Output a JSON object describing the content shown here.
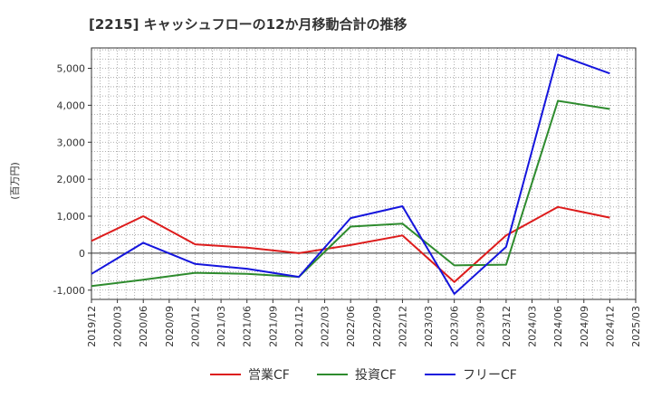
{
  "chart_data": {
    "type": "line",
    "title": "[2215]  キャッシュフローの12か月移動合計の推移",
    "ylabel": "(百万円)",
    "xlabel": "",
    "ylim": [
      -1250,
      5550
    ],
    "yticks": [
      -1000,
      0,
      1000,
      2000,
      3000,
      4000,
      5000
    ],
    "ytick_labels": [
      "-1,000",
      "0",
      "1,000",
      "2,000",
      "3,000",
      "4,000",
      "5,000"
    ],
    "categories": [
      "2019/12",
      "2020/03",
      "2020/06",
      "2020/09",
      "2020/12",
      "2021/03",
      "2021/06",
      "2021/09",
      "2021/12",
      "2022/03",
      "2022/06",
      "2022/09",
      "2022/12",
      "2023/03",
      "2023/06",
      "2023/09",
      "2023/12",
      "2024/03",
      "2024/06",
      "2024/09",
      "2024/12",
      "2025/03"
    ],
    "grid": true,
    "legend_position": "bottom",
    "series": [
      {
        "name": "営業CF",
        "color": "#dd1c1c",
        "values": [
          330,
          null,
          1000,
          null,
          240,
          null,
          150,
          null,
          0,
          null,
          220,
          null,
          480,
          null,
          -780,
          null,
          480,
          null,
          1250,
          null,
          960,
          null
        ]
      },
      {
        "name": "投資CF",
        "color": "#2e8b2e",
        "values": [
          -890,
          null,
          -720,
          null,
          -530,
          null,
          -560,
          null,
          -640,
          null,
          720,
          null,
          800,
          null,
          -330,
          null,
          -310,
          null,
          4120,
          null,
          3900,
          null
        ]
      },
      {
        "name": "フリーCF",
        "color": "#1515dd",
        "values": [
          -560,
          null,
          280,
          null,
          -290,
          null,
          -420,
          null,
          -640,
          null,
          950,
          null,
          1270,
          null,
          -1100,
          null,
          170,
          null,
          5370,
          null,
          4860,
          null
        ]
      }
    ]
  }
}
